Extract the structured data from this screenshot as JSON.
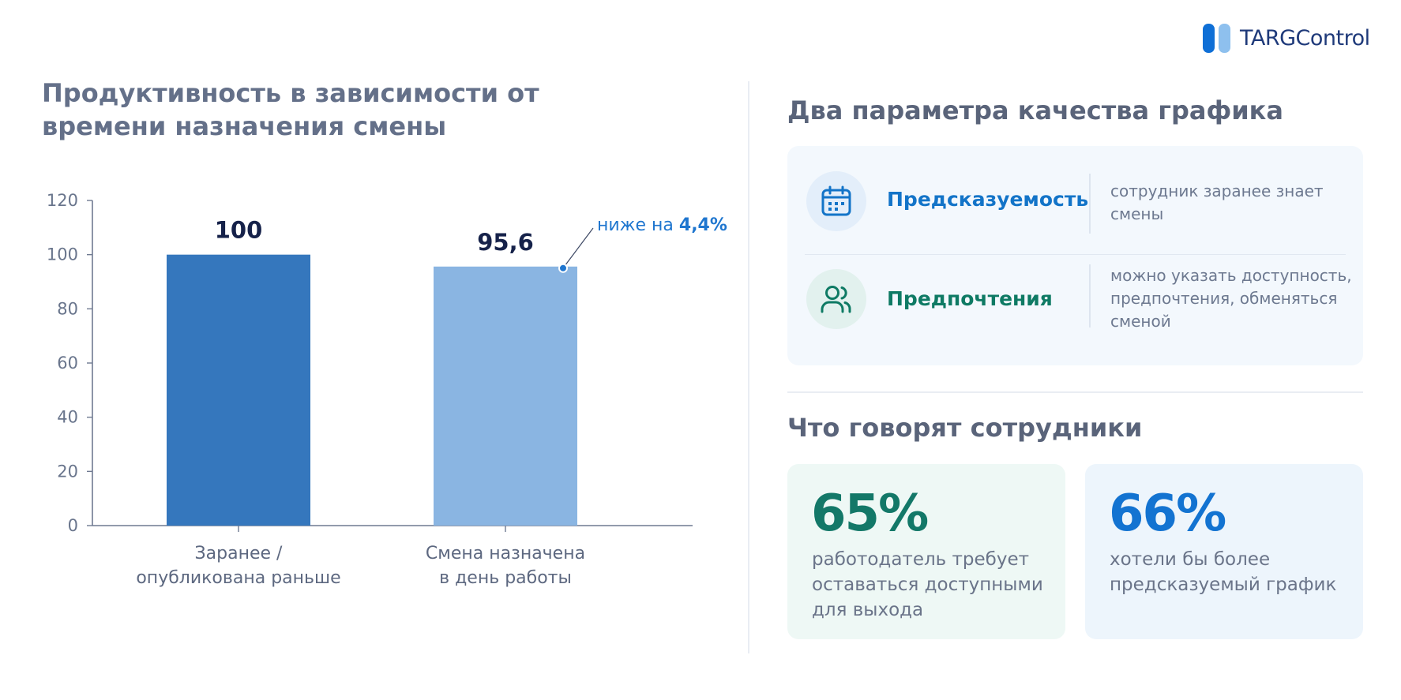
{
  "brand": {
    "name": "TARGControl",
    "colors": {
      "bar_dark": "#0f6fd6",
      "bar_light": "#8ec0ee",
      "text": "#1f3a7a"
    }
  },
  "left": {
    "title": "Продуктивность в зависимости от времени назначения смены"
  },
  "chart_data": {
    "type": "bar",
    "categories": [
      "Заранее / опубликована раньше",
      "Смена назначена в день работы"
    ],
    "category_lines": [
      [
        "Заранее /",
        "опубликована раньше"
      ],
      [
        "Смена назначена",
        "в день работы"
      ]
    ],
    "values": [
      100,
      95.6
    ],
    "value_labels": [
      "100",
      "95,6"
    ],
    "bar_colors": [
      "#3577bd",
      "#8ab5e2"
    ],
    "ylim": [
      0,
      120
    ],
    "yticks": [
      0,
      20,
      40,
      60,
      80,
      100,
      120
    ],
    "grid": false,
    "annotation": {
      "prefix": "ниже на ",
      "value": "4,4%",
      "target_index": 1
    },
    "title": "Продуктивность в зависимости от времени назначения смены",
    "xlabel": "",
    "ylabel": ""
  },
  "right": {
    "quality_title": "Два параметра качества графика",
    "params": [
      {
        "icon": "calendar-icon",
        "title": "Предсказуемость",
        "title_color": "#1374c8",
        "icon_bg": "#e3eefa",
        "desc_lines": [
          "сотрудник заранее знает",
          "смены"
        ]
      },
      {
        "icon": "users-icon",
        "title": "Предпочтения",
        "title_color": "#0e7a64",
        "icon_bg": "#e2f1ee",
        "desc_lines": [
          "можно указать доступность,",
          "предпочтения, обменяться",
          "сменой"
        ]
      }
    ],
    "employees_title": "Что говорят сотрудники",
    "stats": [
      {
        "value": "65%",
        "color": "#137868",
        "desc_lines": [
          "работодатель требует",
          "оставаться доступными",
          "для выхода"
        ]
      },
      {
        "value": "66%",
        "color": "#1373d1",
        "desc_lines": [
          "хотели бы более",
          "предсказуемый график"
        ]
      }
    ]
  }
}
